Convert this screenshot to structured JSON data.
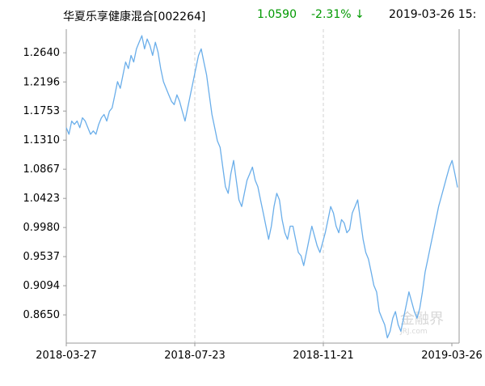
{
  "header": {
    "title": "华夏乐享健康混合[002264]",
    "nav": "1.0590",
    "change": "-2.31% ↓",
    "datetime": "2019-03-26 15:"
  },
  "colors": {
    "line": "#6aaeea",
    "axis": "#999999",
    "grid": "#d0d0d0",
    "down": "#009900"
  },
  "watermark": {
    "cn": "金融界",
    "en": "JRJ.com"
  },
  "chart_data": {
    "type": "line",
    "title": "",
    "xlabel": "",
    "ylabel": "",
    "ylim": [
      0.822,
      1.3
    ],
    "yticks": [
      "1.2640",
      "1.2196",
      "1.1753",
      "1.1310",
      "1.0867",
      "1.0423",
      "0.9980",
      "0.9537",
      "0.9094",
      "0.8650"
    ],
    "ytick_values": [
      1.264,
      1.2196,
      1.1753,
      1.131,
      1.0867,
      1.0423,
      0.998,
      0.9537,
      0.9094,
      0.865
    ],
    "xticks": [
      "2018-03-27",
      "2018-07-23",
      "2018-11-21",
      "2019-03-26"
    ],
    "grid": "dashed vertical lines at x ticks",
    "series": [
      {
        "values": [
          1.15,
          1.14,
          1.16,
          1.155,
          1.16,
          1.15,
          1.165,
          1.16,
          1.15,
          1.14,
          1.145,
          1.14,
          1.155,
          1.165,
          1.17,
          1.16,
          1.175,
          1.18,
          1.2,
          1.22,
          1.21,
          1.23,
          1.25,
          1.24,
          1.26,
          1.25,
          1.27,
          1.28,
          1.29,
          1.27,
          1.285,
          1.275,
          1.26,
          1.28,
          1.265,
          1.24,
          1.22,
          1.21,
          1.2,
          1.19,
          1.185,
          1.2,
          1.19,
          1.175,
          1.16,
          1.18,
          1.2,
          1.22,
          1.24,
          1.26,
          1.27,
          1.25,
          1.23,
          1.2,
          1.17,
          1.15,
          1.13,
          1.12,
          1.09,
          1.06,
          1.05,
          1.08,
          1.1,
          1.07,
          1.04,
          1.03,
          1.05,
          1.07,
          1.08,
          1.09,
          1.07,
          1.06,
          1.04,
          1.02,
          1.0,
          0.98,
          1.0,
          1.03,
          1.05,
          1.04,
          1.01,
          0.99,
          0.98,
          1.0,
          1.0,
          0.98,
          0.96,
          0.955,
          0.94,
          0.96,
          0.98,
          1.0,
          0.985,
          0.97,
          0.96,
          0.975,
          0.99,
          1.01,
          1.03,
          1.02,
          1.0,
          0.99,
          1.01,
          1.005,
          0.99,
          0.995,
          1.02,
          1.03,
          1.04,
          1.01,
          0.98,
          0.96,
          0.95,
          0.93,
          0.91,
          0.9,
          0.87,
          0.86,
          0.85,
          0.83,
          0.84,
          0.86,
          0.87,
          0.85,
          0.84,
          0.86,
          0.88,
          0.9,
          0.885,
          0.87,
          0.86,
          0.875,
          0.9,
          0.93,
          0.95,
          0.97,
          0.99,
          1.01,
          1.03,
          1.045,
          1.06,
          1.075,
          1.09,
          1.1,
          1.08,
          1.059
        ]
      }
    ]
  }
}
